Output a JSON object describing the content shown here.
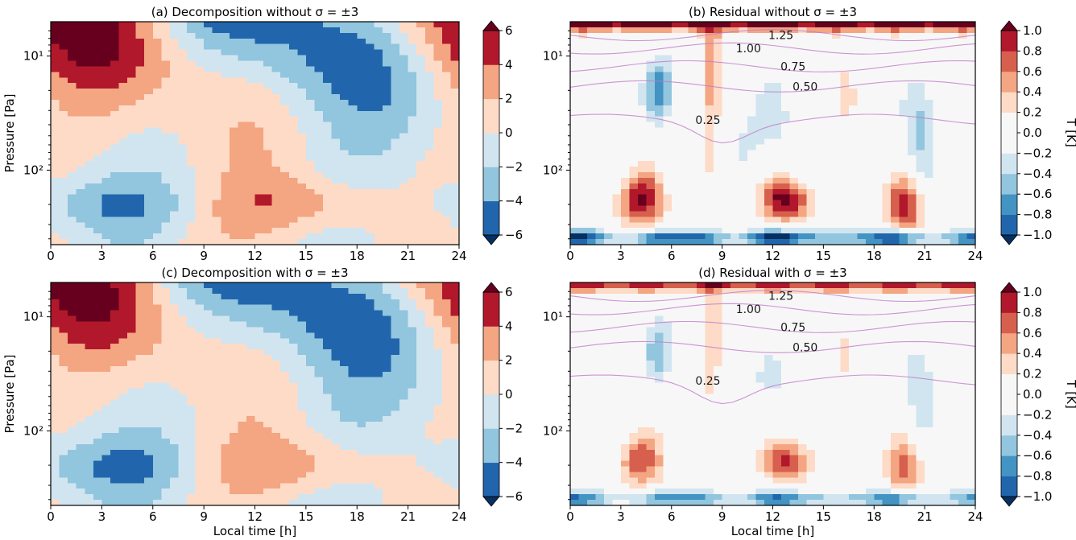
{
  "figure": {
    "contour_colors": [
      "#053061",
      "#2166ac",
      "#4393c3",
      "#92c5de",
      "#d1e5f0",
      "#f7f7f7",
      "#fddbc7",
      "#f4a582",
      "#d6604d",
      "#b2182b",
      "#67001f"
    ],
    "line_color": "#000000",
    "overlay_color": "#c07ac9"
  },
  "chart_data": [
    {
      "type": "heatmap",
      "panel": "a",
      "title": "(a) Decomposition without σ = ±3",
      "xlabel": "",
      "ylabel": "Pressure [Pa]",
      "xlim": [
        0,
        24
      ],
      "x_ticks": [
        "0",
        "3",
        "6",
        "9",
        "12",
        "15",
        "18",
        "21",
        "24"
      ],
      "y_scale": "log",
      "ylim_pa": [
        450,
        5
      ],
      "y_ticks": [
        "10¹",
        "10²"
      ],
      "colorbar": {
        "label": "",
        "levels": [
          -6,
          -4,
          -2,
          0,
          2,
          4,
          6
        ],
        "tick_labels": [
          "−6",
          "−4",
          "−2",
          "0",
          "2",
          "4",
          "6"
        ],
        "extend": "both"
      },
      "field": "diurnal temperature tide decomposition: warm anomaly near 0–2 h high altitude, cold anomaly around 6–12 h aloft, warm lobe near 13–17 h low altitude"
    },
    {
      "type": "heatmap",
      "panel": "b",
      "title": "(b) Residual without σ = ±3",
      "xlabel": "",
      "ylabel": "",
      "xlim": [
        0,
        24
      ],
      "x_ticks": [
        "0",
        "3",
        "6",
        "9",
        "12",
        "15",
        "18",
        "21",
        "24"
      ],
      "y_scale": "log",
      "ylim_pa": [
        450,
        5
      ],
      "y_ticks": [
        "10¹",
        "10²"
      ],
      "colorbar": {
        "label": "T [K]",
        "levels": [
          -1.0,
          -0.8,
          -0.6,
          -0.4,
          -0.2,
          0.0,
          0.2,
          0.4,
          0.6,
          0.8,
          1.0
        ],
        "tick_labels": [
          "−1.0",
          "−0.8",
          "−0.6",
          "−0.4",
          "−0.2",
          "0.0",
          "0.2",
          "0.4",
          "0.6",
          "0.8",
          "1.0"
        ],
        "extend": "both"
      },
      "overlay_labels": [
        "1.25",
        "1.00",
        "0.75",
        "0.50",
        "0.25"
      ]
    },
    {
      "type": "heatmap",
      "panel": "c",
      "title": "(c) Decomposition with σ = ±3",
      "xlabel": "Local time [h]",
      "ylabel": "Pressure [Pa]",
      "xlim": [
        0,
        24
      ],
      "x_ticks": [
        "0",
        "3",
        "6",
        "9",
        "12",
        "15",
        "18",
        "21",
        "24"
      ],
      "y_scale": "log",
      "ylim_pa": [
        450,
        5
      ],
      "y_ticks": [
        "10¹",
        "10²"
      ],
      "colorbar": {
        "label": "",
        "levels": [
          -6,
          -4,
          -2,
          0,
          2,
          4,
          6
        ],
        "tick_labels": [
          "−6",
          "−4",
          "−2",
          "0",
          "2",
          "4",
          "6"
        ],
        "extend": "both"
      }
    },
    {
      "type": "heatmap",
      "panel": "d",
      "title": "(d) Residual with σ = ±3",
      "xlabel": "Local time [h]",
      "ylabel": "",
      "xlim": [
        0,
        24
      ],
      "x_ticks": [
        "0",
        "3",
        "6",
        "9",
        "12",
        "15",
        "18",
        "21",
        "24"
      ],
      "y_scale": "log",
      "ylim_pa": [
        450,
        5
      ],
      "y_ticks": [
        "10¹",
        "10²"
      ],
      "colorbar": {
        "label": "T [K]",
        "levels": [
          -1.0,
          -0.8,
          -0.6,
          -0.4,
          -0.2,
          0.0,
          0.2,
          0.4,
          0.6,
          0.8,
          1.0
        ],
        "tick_labels": [
          "−1.0",
          "−0.8",
          "−0.6",
          "−0.4",
          "−0.2",
          "0.0",
          "0.2",
          "0.4",
          "0.6",
          "0.8",
          "1.0"
        ],
        "extend": "both"
      },
      "overlay_labels": [
        "1.25",
        "1.00",
        "0.75",
        "0.50",
        "0.25"
      ]
    }
  ]
}
